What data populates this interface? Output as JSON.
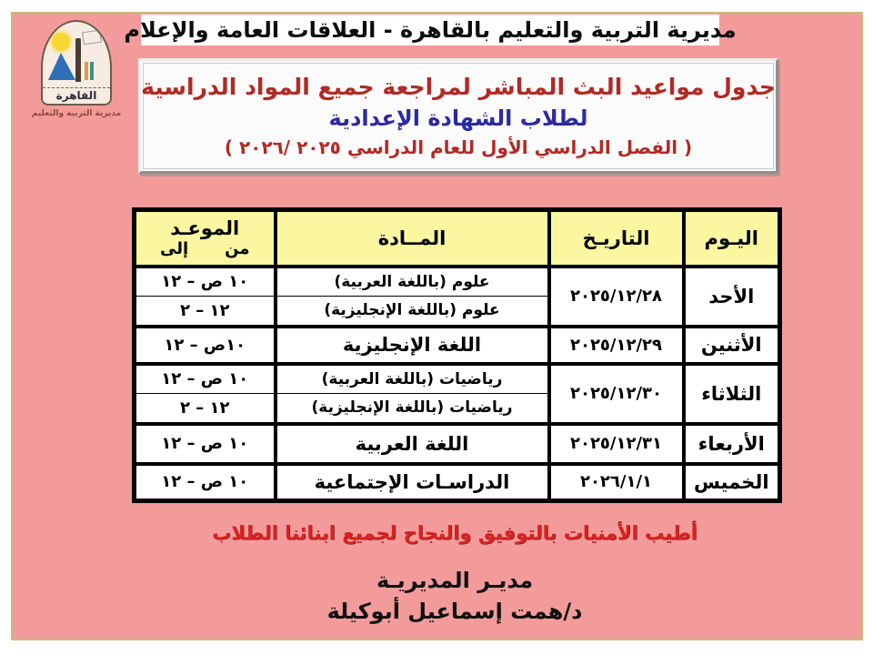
{
  "header": {
    "bar_text": "مديرية التربية والتعليم بالقاهرة - العلاقات العامة والإعلام"
  },
  "logo": {
    "city": "القاهرة",
    "org": "مديرية التربية والتعليم"
  },
  "title_box": {
    "line1": "جدول مواعيد البث المباشر لمراجعة جميع المواد الدراسية",
    "line2": "لطلاب الشهادة الإعدادية",
    "line3": "( الفصل الدراسي الأول للعام الدراسي ٢٠٢٥ /٢٠٢٦ )"
  },
  "table": {
    "headers": {
      "day": "اليـوم",
      "date": "التاريـخ",
      "subject": "المــادة",
      "time_title": "الموعـد",
      "from": "من",
      "to": "إلى"
    },
    "rows": [
      {
        "day": "الأحد",
        "date": "٢٠٢٥/١٢/٢٨",
        "entries": [
          {
            "subject": "علوم (باللغة العربية)",
            "time": "١٠ ص – ١٢"
          },
          {
            "subject": "علوم (باللغة الإنجليزية)",
            "time": "١٢ – ٢"
          }
        ]
      },
      {
        "day": "الأثنين",
        "date": "٢٠٢٥/١٢/٢٩",
        "entries": [
          {
            "subject": "اللغة الإنجليزية",
            "time": "١٠ص – ١٢"
          }
        ]
      },
      {
        "day": "الثلاثاء",
        "date": "٢٠٢٥/١٢/٣٠",
        "entries": [
          {
            "subject": "رياضيات (باللغة العربية)",
            "time": "١٠ ص – ١٢"
          },
          {
            "subject": "رياضيات (باللغة الإنجليزية)",
            "time": "١٢ – ٢"
          }
        ]
      },
      {
        "day": "الأربعاء",
        "date": "٢٠٢٥/١٢/٣١",
        "entries": [
          {
            "subject": "اللغة العربية",
            "time": "١٠ ص – ١٢"
          }
        ]
      },
      {
        "day": "الخميس",
        "date": "٢٠٢٦/١/١",
        "entries": [
          {
            "subject": "الدراسـات الإجتماعية",
            "time": "١٠ ص – ١٢"
          }
        ]
      }
    ]
  },
  "footer": {
    "wishes": "أطيب الأمنيات بالتوفيق والنجاح لجميع ابنائنا الطلاب",
    "sig_title": "مديـر المديريـة",
    "sig_name": "د/همت إسماعيل أبوكيلة"
  },
  "colors": {
    "page_pink": "#f39b9b",
    "panel_border_tan": "#c9b878",
    "table_header_yellow": "#faf7a0",
    "title_red": "#b12a25",
    "title_blue": "#2b2ba0",
    "wishes_red": "#d92222",
    "border_black": "#000000"
  }
}
